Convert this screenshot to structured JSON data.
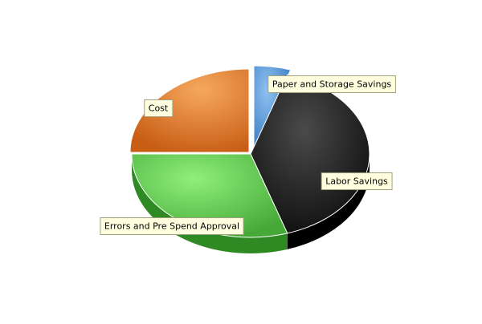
{
  "chart_data": {
    "type": "pie",
    "style": "3d-exploded",
    "slices": [
      {
        "label": "Paper and Storage Savings",
        "value": 5,
        "color": "#4a8fd4"
      },
      {
        "label": "Labor Savings",
        "value": 40,
        "color": "#1e1e1e"
      },
      {
        "label": "Errors and Pre Spend Approval",
        "value": 30,
        "color": "#5ec94a"
      },
      {
        "label": "Cost",
        "value": 25,
        "color": "#e0782b"
      }
    ],
    "legend": "none",
    "label_style": "callout-boxes"
  }
}
